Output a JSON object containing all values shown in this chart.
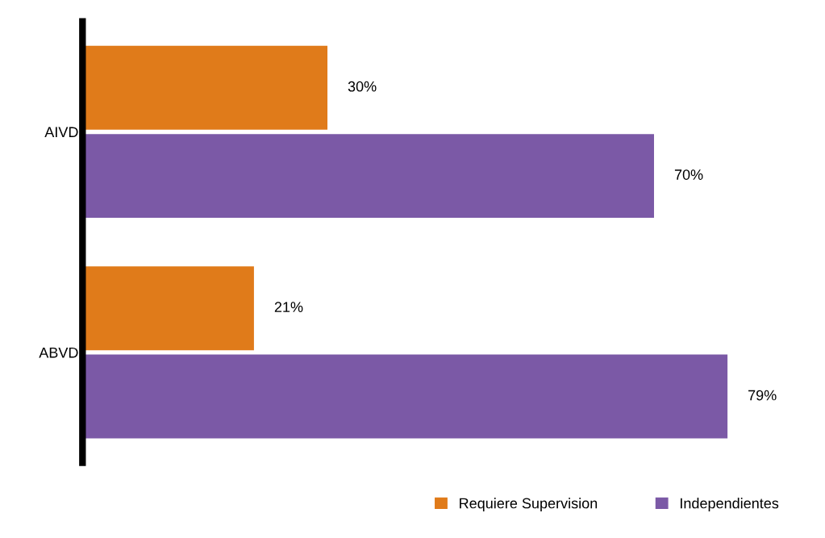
{
  "chart_data": {
    "type": "bar",
    "orientation": "horizontal",
    "categories": [
      "AIVD",
      "ABVD"
    ],
    "series": [
      {
        "name": "Requiere Supervision",
        "color": "#e07b1a",
        "values": [
          30,
          21
        ],
        "value_labels": [
          "30%",
          "21%"
        ]
      },
      {
        "name": "Independientes",
        "color": "#7b59a6",
        "values": [
          70,
          79
        ],
        "value_labels": [
          "70%",
          "79%"
        ]
      }
    ],
    "legend": "bottom right",
    "grid": false
  }
}
